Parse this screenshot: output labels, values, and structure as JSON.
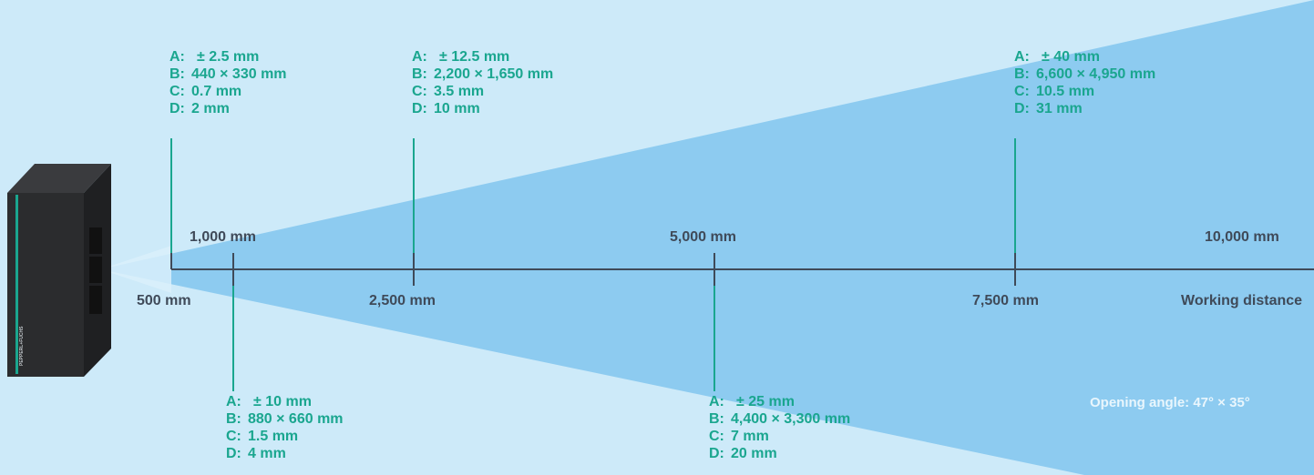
{
  "axis": {
    "ticks_top": [
      "1,000 mm",
      "5,000 mm",
      "10,000 mm"
    ],
    "ticks_bottom": [
      "500 mm",
      "2,500 mm",
      "7,500 mm"
    ],
    "axis_label": "Working distance"
  },
  "opening_angle": "Opening angle: 47° × 35°",
  "device": {
    "brand_text": "PEPPERL+FUCHS"
  },
  "specs": [
    {
      "A": "± 2.5 mm",
      "B": "440 × 330 mm",
      "C": "0.7 mm",
      "D": "2 mm"
    },
    {
      "A": "± 10 mm",
      "B": "880 × 660 mm",
      "C": "1.5 mm",
      "D": "4 mm"
    },
    {
      "A": "± 12.5 mm",
      "B": "2,200 × 1,650 mm",
      "C": "3.5 mm",
      "D": "10 mm"
    },
    {
      "A": "± 25 mm",
      "B": "4,400 × 3,300 mm",
      "C": "7 mm",
      "D": "20 mm"
    },
    {
      "A": "± 40 mm",
      "B": "6,600 × 4,950 mm",
      "C": "10.5 mm",
      "D": "31 mm"
    }
  ],
  "spec_keys": [
    "A:",
    "B:",
    "C:",
    "D:"
  ],
  "colors": {
    "background": "#cdeaf9",
    "beam": "#8dcbf0",
    "teal": "#1aa68f",
    "axis": "#3f4a59",
    "device": "#2b2c2e"
  }
}
